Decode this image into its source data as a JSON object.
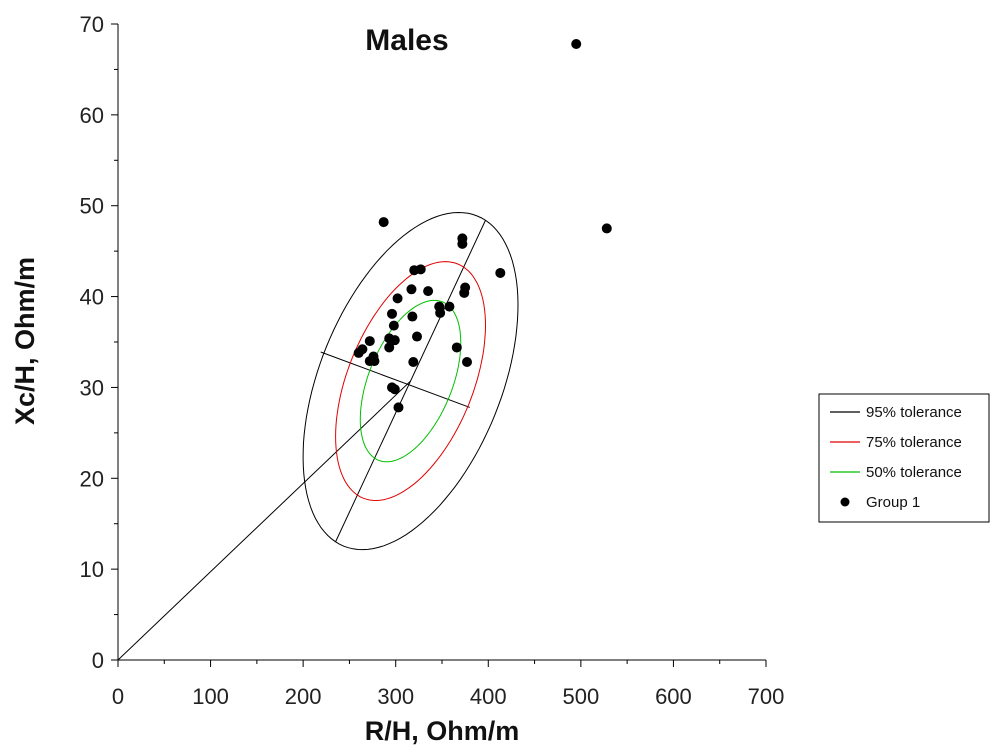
{
  "chart_data": {
    "type": "scatter",
    "title": "Males",
    "xlabel": "R/H, Ohm/m",
    "ylabel": "Xc/H, Ohm/m",
    "xlim": [
      0,
      700
    ],
    "ylim": [
      0,
      70
    ],
    "xticks": [
      0,
      100,
      200,
      300,
      400,
      500,
      600,
      700
    ],
    "yticks": [
      0,
      10,
      20,
      30,
      40,
      50,
      60,
      70
    ],
    "grid": false,
    "legend_position": "right",
    "ellipses": [
      {
        "name": "95% tolerance",
        "color": "#000000",
        "center": [
          316,
          30.7
        ],
        "a": 19.6,
        "b": 10.0,
        "angle_deg": 68
      },
      {
        "name": "75% tolerance",
        "color": "#e00000",
        "center": [
          316,
          30.7
        ],
        "a": 13.9,
        "b": 6.9,
        "angle_deg": 68
      },
      {
        "name": "50% tolerance",
        "color": "#00c000",
        "center": [
          316,
          30.7
        ],
        "a": 9.4,
        "b": 4.6,
        "angle_deg": 68
      }
    ],
    "lines": [
      {
        "from": [
          0,
          0
        ],
        "to": [
          316,
          30.7
        ],
        "color": "#000000"
      },
      {
        "from": [
          235,
          13.0
        ],
        "to": [
          397,
          48.4
        ],
        "color": "#000000"
      },
      {
        "from": [
          219,
          33.9
        ],
        "to": [
          380,
          27.8
        ],
        "color": "#000000"
      }
    ],
    "series": [
      {
        "name": "Group 1",
        "color": "#000000",
        "points": [
          [
            495,
            67.8
          ],
          [
            528,
            47.5
          ],
          [
            287,
            48.2
          ],
          [
            372,
            46.4
          ],
          [
            372,
            45.8
          ],
          [
            413,
            42.6
          ],
          [
            320,
            42.9
          ],
          [
            327,
            43.0
          ],
          [
            375,
            41.0
          ],
          [
            374,
            40.4
          ],
          [
            335,
            40.6
          ],
          [
            317,
            40.8
          ],
          [
            302,
            39.8
          ],
          [
            347,
            38.9
          ],
          [
            358,
            38.9
          ],
          [
            348,
            38.2
          ],
          [
            296,
            38.1
          ],
          [
            318,
            37.8
          ],
          [
            298,
            36.8
          ],
          [
            323,
            35.6
          ],
          [
            272,
            35.1
          ],
          [
            293,
            35.4
          ],
          [
            299,
            35.2
          ],
          [
            293,
            34.4
          ],
          [
            264,
            34.2
          ],
          [
            260,
            33.8
          ],
          [
            366,
            34.4
          ],
          [
            276,
            33.4
          ],
          [
            272,
            32.9
          ],
          [
            277,
            32.9
          ],
          [
            319,
            32.8
          ],
          [
            377,
            32.8
          ],
          [
            296,
            30.0
          ],
          [
            299,
            29.8
          ],
          [
            303,
            27.8
          ]
        ]
      }
    ],
    "legend": [
      {
        "label": "95% tolerance",
        "kind": "line",
        "color": "#000000"
      },
      {
        "label": "75% tolerance",
        "kind": "line",
        "color": "#e00000"
      },
      {
        "label": "50% tolerance",
        "kind": "line",
        "color": "#00c000"
      },
      {
        "label": "Group 1",
        "kind": "marker",
        "color": "#000000"
      }
    ]
  }
}
